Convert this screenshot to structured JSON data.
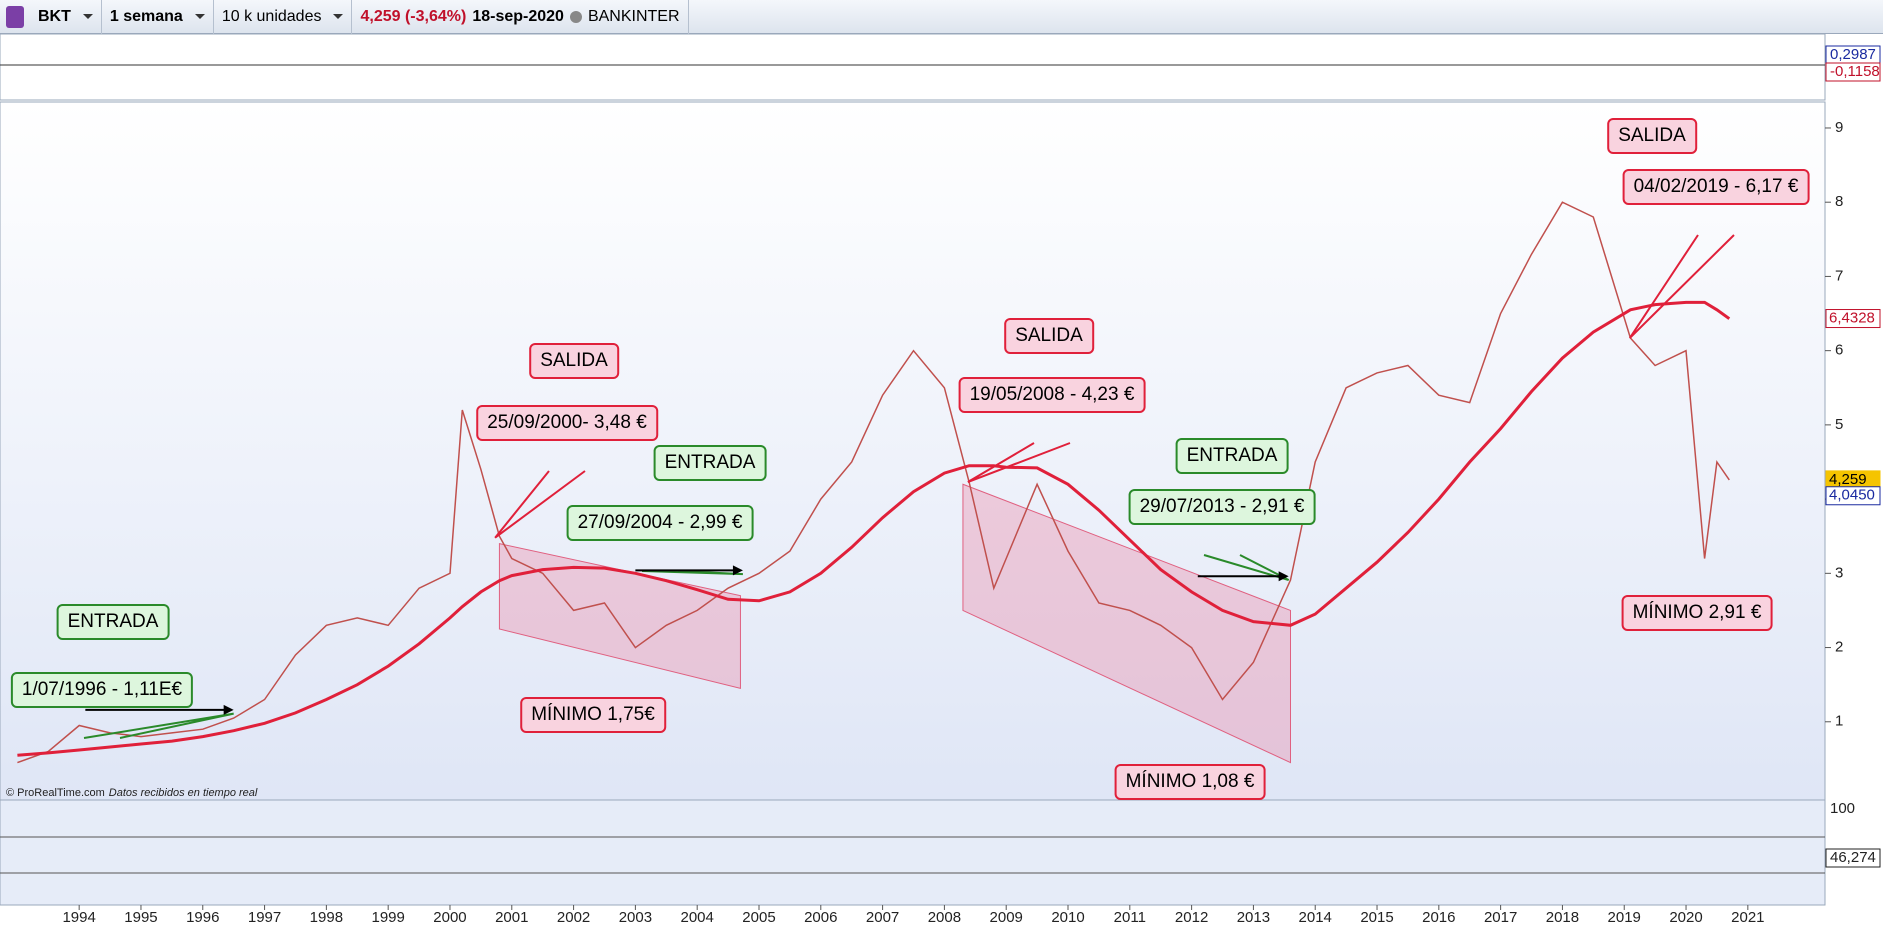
{
  "toolbar": {
    "symbol": "BKT",
    "period": "1 semana",
    "units": "10 k unidades",
    "quote": "4,259 (-3,64%)",
    "date": "18-sep-2020",
    "name": "BANKINTER"
  },
  "credit": {
    "source": "© ProRealTime.com",
    "note": "Datos recibidos en tiempo real"
  },
  "chart_data": {
    "type": "line",
    "xlim": [
      1992.8,
      2022.2
    ],
    "xticks": [
      1994,
      1995,
      1996,
      1997,
      1998,
      1999,
      2000,
      2001,
      2002,
      2003,
      2004,
      2005,
      2006,
      2007,
      2008,
      2009,
      2010,
      2011,
      2012,
      2013,
      2014,
      2015,
      2016,
      2017,
      2018,
      2019,
      2020,
      2021
    ],
    "ylim": [
      0,
      9.35
    ],
    "yticks": [
      1,
      2,
      3,
      4,
      5,
      6,
      7,
      8,
      9
    ],
    "x": [
      1993.0,
      1993.5,
      1994.0,
      1994.5,
      1995.0,
      1995.5,
      1996.0,
      1996.5,
      1997.0,
      1997.5,
      1998.0,
      1998.5,
      1999.0,
      1999.5,
      2000.0,
      2000.2,
      2000.5,
      2000.8,
      2001.0,
      2001.5,
      2002.0,
      2002.5,
      2003.0,
      2003.5,
      2004.0,
      2004.5,
      2005.0,
      2005.5,
      2006.0,
      2006.5,
      2007.0,
      2007.5,
      2008.0,
      2008.4,
      2008.8,
      2009.0,
      2009.5,
      2010.0,
      2010.5,
      2011.0,
      2011.5,
      2012.0,
      2012.5,
      2013.0,
      2013.6,
      2014.0,
      2014.5,
      2015.0,
      2015.5,
      2016.0,
      2016.5,
      2017.0,
      2017.5,
      2018.0,
      2018.5,
      2019.1,
      2019.5,
      2020.0,
      2020.3,
      2020.5,
      2020.7
    ],
    "series": [
      {
        "color": "#c0504d",
        "values": [
          0.45,
          0.6,
          0.95,
          0.85,
          0.8,
          0.85,
          0.9,
          1.05,
          1.3,
          1.9,
          2.3,
          2.4,
          2.3,
          2.8,
          3.0,
          5.2,
          4.4,
          3.5,
          3.2,
          3.0,
          2.5,
          2.6,
          2.0,
          2.3,
          2.5,
          2.8,
          3.0,
          3.3,
          4.0,
          4.5,
          5.4,
          6.0,
          5.5,
          4.23,
          2.8,
          3.2,
          4.2,
          3.3,
          2.6,
          2.5,
          2.3,
          2.0,
          1.3,
          1.8,
          2.91,
          4.5,
          5.5,
          5.7,
          5.8,
          5.4,
          5.3,
          6.5,
          7.3,
          8.0,
          7.8,
          6.17,
          5.8,
          6.0,
          3.2,
          4.5,
          4.259
        ]
      },
      {
        "color": "#e0203a",
        "values": [
          0.55,
          0.58,
          0.62,
          0.66,
          0.7,
          0.74,
          0.8,
          0.88,
          0.98,
          1.12,
          1.3,
          1.5,
          1.75,
          2.05,
          2.4,
          2.55,
          2.75,
          2.9,
          2.97,
          3.05,
          3.08,
          3.07,
          3.0,
          2.9,
          2.78,
          2.65,
          2.63,
          2.75,
          3.0,
          3.35,
          3.75,
          4.1,
          4.35,
          4.45,
          4.45,
          4.43,
          4.42,
          4.2,
          3.85,
          3.45,
          3.05,
          2.75,
          2.5,
          2.35,
          2.3,
          2.45,
          2.8,
          3.15,
          3.55,
          4.0,
          4.5,
          4.95,
          5.45,
          5.9,
          6.25,
          6.55,
          6.62,
          6.65,
          6.65,
          6.55,
          6.43
        ]
      }
    ],
    "price_labels": [
      {
        "value": 6.4328,
        "label": "6,4328",
        "color": "#c0102a"
      },
      {
        "value": 4.259,
        "label": "4,259",
        "color": "#f5c400"
      },
      {
        "value": 4.045,
        "label": "4,0450",
        "color": "#1a2aa0"
      }
    ],
    "oscillator_labels": {
      "top": "0,2987",
      "bottom": "-0,1158"
    },
    "rsi_labels": {
      "max": "100",
      "last": "46,274"
    }
  },
  "annotations": [
    {
      "text": "ENTRADA",
      "color": "#2a8a2a"
    },
    {
      "text": "1/07/1996 - 1,11E€",
      "color": "#2a8a2a"
    },
    {
      "text": "SALIDA",
      "color": "#e0203a"
    },
    {
      "text": "25/09/2000- 3,48 €",
      "color": "#e0203a"
    },
    {
      "text": "ENTRADA",
      "color": "#2a8a2a"
    },
    {
      "text": "27/09/2004 - 2,99 €",
      "color": "#2a8a2a"
    },
    {
      "text": "MÍNIMO 1,75€",
      "color": "#e0203a"
    },
    {
      "text": "SALIDA",
      "color": "#e0203a"
    },
    {
      "text": "19/05/2008 - 4,23 €",
      "color": "#e0203a"
    },
    {
      "text": "ENTRADA",
      "color": "#2a8a2a"
    },
    {
      "text": "29/07/2013 - 2,91 €",
      "color": "#2a8a2a"
    },
    {
      "text": "MÍNIMO 1,08 €",
      "color": "#e0203a"
    },
    {
      "text": "SALIDA",
      "color": "#e0203a"
    },
    {
      "text": "04/02/2019 - 6,17 €",
      "color": "#e0203a"
    },
    {
      "text": "MÍNIMO 2,91 €",
      "color": "#e0203a"
    }
  ]
}
